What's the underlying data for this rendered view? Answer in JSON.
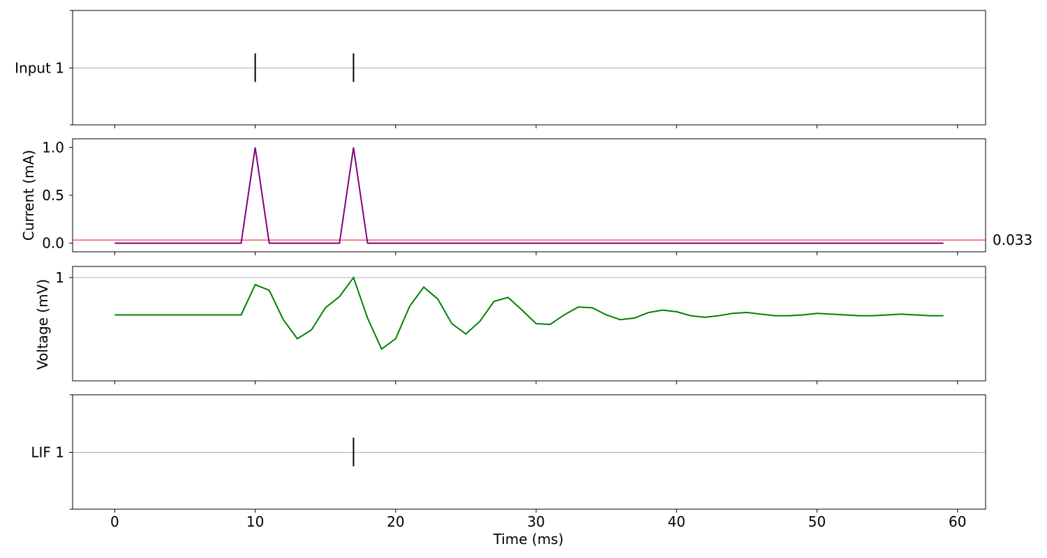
{
  "chart_data": [
    {
      "type": "raster",
      "row_labels": [
        "Input 1"
      ],
      "spikes": [
        10,
        17
      ],
      "xlim": [
        -3,
        62
      ],
      "grid": "horizontal line at row",
      "color": "#000000"
    },
    {
      "type": "line",
      "ylabel": "Current (mA)",
      "yticks": [
        "0.0",
        "0.5",
        "1.0"
      ],
      "ylim": [
        -0.09,
        1.09
      ],
      "xlim": [
        -3,
        62
      ],
      "series": [
        {
          "color": "#800080",
          "x": [
            0,
            9,
            10,
            11,
            16,
            17,
            18,
            59
          ],
          "y": [
            0,
            0,
            1,
            0,
            0,
            1,
            0,
            0
          ]
        }
      ],
      "threshold": {
        "value": 0.033,
        "label": "0.033",
        "color": "#ff0000"
      }
    },
    {
      "type": "line",
      "ylabel": "Voltage (mV)",
      "yticks": [
        "1"
      ],
      "ylim": [
        -0.3,
        1.14
      ],
      "xlim": [
        -3,
        62
      ],
      "grid": "horizontal line at 1",
      "series": [
        {
          "color": "#008000",
          "x": [
            0,
            1,
            2,
            3,
            4,
            5,
            6,
            7,
            8,
            9,
            10,
            11,
            12,
            13,
            14,
            15,
            16,
            17,
            18,
            19,
            20,
            21,
            22,
            23,
            24,
            25,
            26,
            27,
            28,
            29,
            30,
            31,
            32,
            33,
            34,
            35,
            36,
            37,
            38,
            39,
            40,
            41,
            42,
            43,
            44,
            45,
            46,
            47,
            48,
            49,
            50,
            51,
            52,
            53,
            54,
            55,
            56,
            57,
            58,
            59
          ],
          "y": [
            0.53,
            0.53,
            0.53,
            0.53,
            0.53,
            0.53,
            0.53,
            0.53,
            0.53,
            0.53,
            0.91,
            0.84,
            0.47,
            0.23,
            0.34,
            0.62,
            0.76,
            1.0,
            0.49,
            0.1,
            0.23,
            0.64,
            0.88,
            0.73,
            0.42,
            0.29,
            0.45,
            0.7,
            0.75,
            0.59,
            0.42,
            0.41,
            0.53,
            0.63,
            0.62,
            0.53,
            0.47,
            0.49,
            0.56,
            0.59,
            0.57,
            0.52,
            0.5,
            0.52,
            0.55,
            0.56,
            0.54,
            0.52,
            0.52,
            0.53,
            0.55,
            0.54,
            0.53,
            0.52,
            0.52,
            0.53,
            0.54,
            0.53,
            0.52,
            0.52
          ]
        }
      ]
    },
    {
      "type": "raster",
      "row_labels": [
        "LIF 1"
      ],
      "spikes": [
        17
      ],
      "xlim": [
        -3,
        62
      ],
      "grid": "horizontal line at row",
      "color": "#000000"
    }
  ],
  "x_axis": {
    "label": "Time (ms)",
    "ticks": [
      0,
      10,
      20,
      30,
      40,
      50,
      60
    ],
    "tick_labels": [
      "0",
      "10",
      "20",
      "30",
      "40",
      "50",
      "60"
    ]
  }
}
